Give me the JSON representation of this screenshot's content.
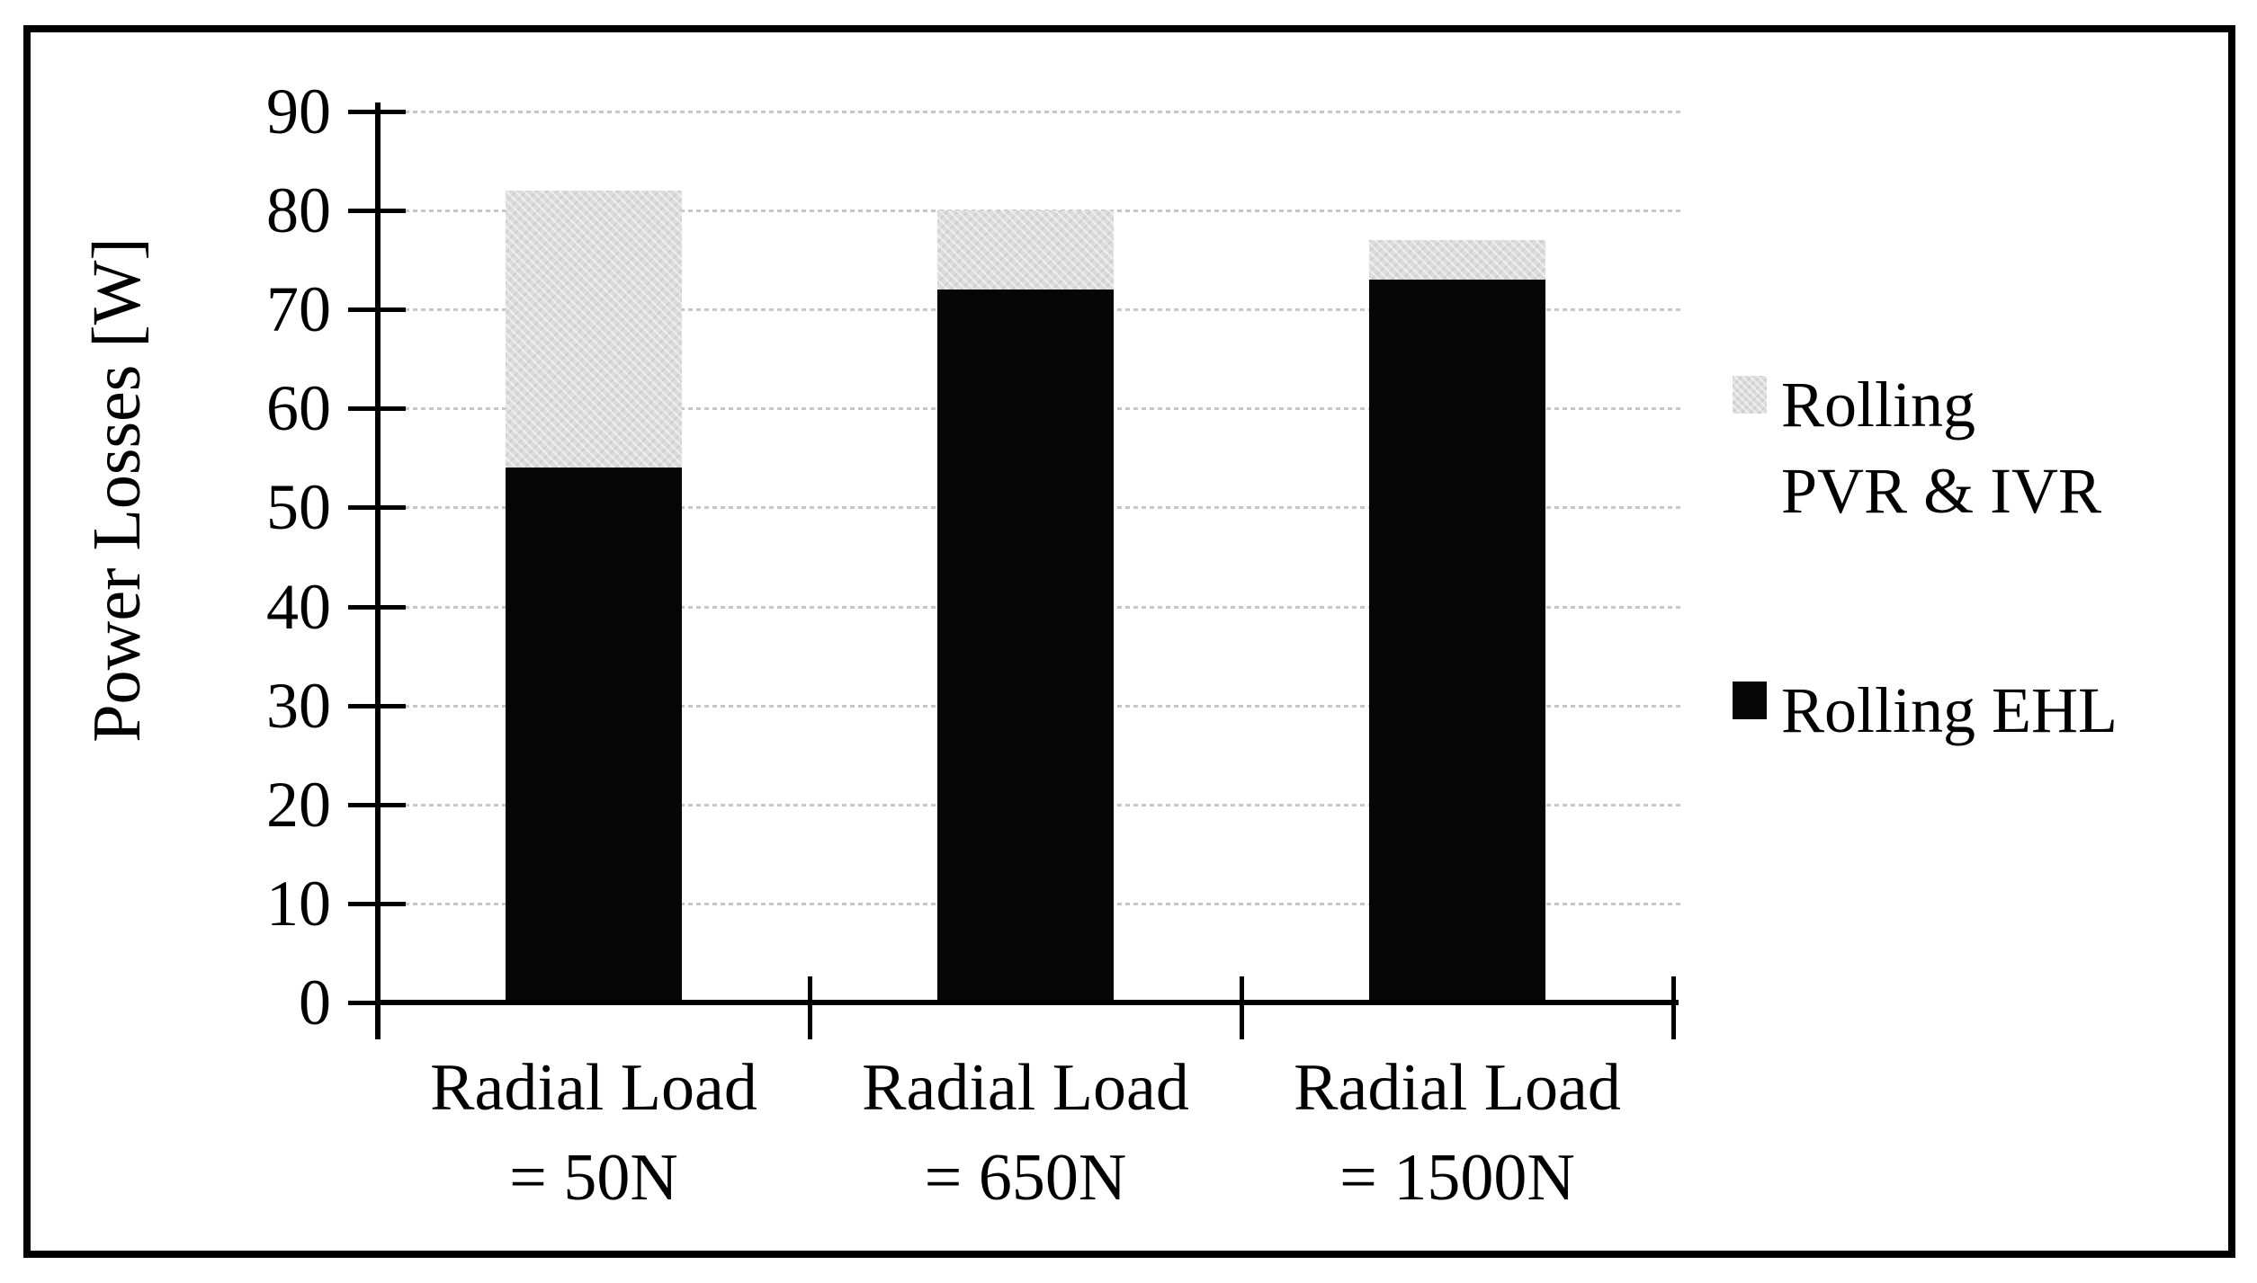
{
  "figure": {
    "background": "#ffffff",
    "border_color": "#000000"
  },
  "legend": {
    "position": "right",
    "items": [
      {
        "label": "Rolling\nPVR & IVR",
        "series": "Rolling PVR & IVR",
        "swatch": "pattern-gray",
        "color": "#dcdcdc"
      },
      {
        "label": "Rolling EHL",
        "series": "Rolling EHL",
        "swatch": "solid-black",
        "color": "#060606"
      }
    ]
  },
  "chart_data": {
    "type": "bar",
    "stacked": true,
    "title": "",
    "xlabel": "",
    "ylabel": "Power Losses [W]",
    "ylim": [
      0,
      90
    ],
    "ytick_step": 10,
    "yticks": [
      0,
      10,
      20,
      30,
      40,
      50,
      60,
      70,
      80,
      90
    ],
    "grid": true,
    "gridline_style": "dotted",
    "gridline_color": "#c7c7c7",
    "legend_position": "right",
    "categories": [
      "Radial Load = 50N",
      "Radial Load = 650N",
      "Radial Load = 1500N"
    ],
    "category_label_lines": [
      [
        "Radial Load",
        "= 50N"
      ],
      [
        "Radial Load",
        "= 650N"
      ],
      [
        "Radial Load",
        "= 1500N"
      ]
    ],
    "series": [
      {
        "name": "Rolling EHL",
        "color": "#060606",
        "fill": "solid",
        "values": [
          54,
          72,
          73
        ]
      },
      {
        "name": "Rolling PVR & IVR",
        "color": "#dcdcdc",
        "fill": "dotted-pattern",
        "values": [
          28,
          8,
          4
        ]
      }
    ],
    "stack_totals": [
      82,
      80,
      77
    ]
  }
}
